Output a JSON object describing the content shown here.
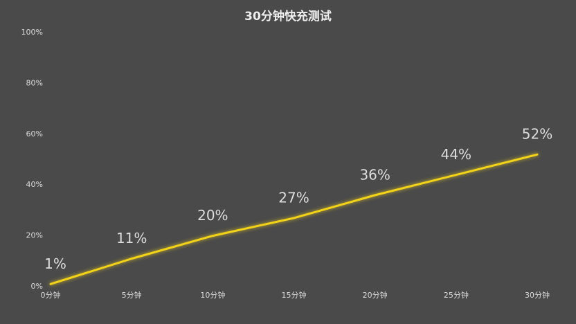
{
  "chart_data": {
    "type": "line",
    "title": "30分钟快充测试",
    "categories": [
      "0分钟",
      "5分钟",
      "10分钟",
      "15分钟",
      "20分钟",
      "25分钟",
      "30分钟"
    ],
    "series": [
      {
        "color": "#f2d31a",
        "values": [
          1,
          11,
          20,
          27,
          36,
          44,
          52
        ],
        "value_labels": [
          "1%",
          "11%",
          "20%",
          "27%",
          "36%",
          "44%",
          "52%"
        ]
      }
    ],
    "ylim": [
      0,
      100
    ],
    "yticks": [
      {
        "value": 0,
        "label": "0%"
      },
      {
        "value": 20,
        "label": "20%"
      },
      {
        "value": 40,
        "label": "40%"
      },
      {
        "value": 60,
        "label": "60%"
      },
      {
        "value": 80,
        "label": "80%"
      },
      {
        "value": 100,
        "label": "100%"
      }
    ],
    "grid": false
  }
}
